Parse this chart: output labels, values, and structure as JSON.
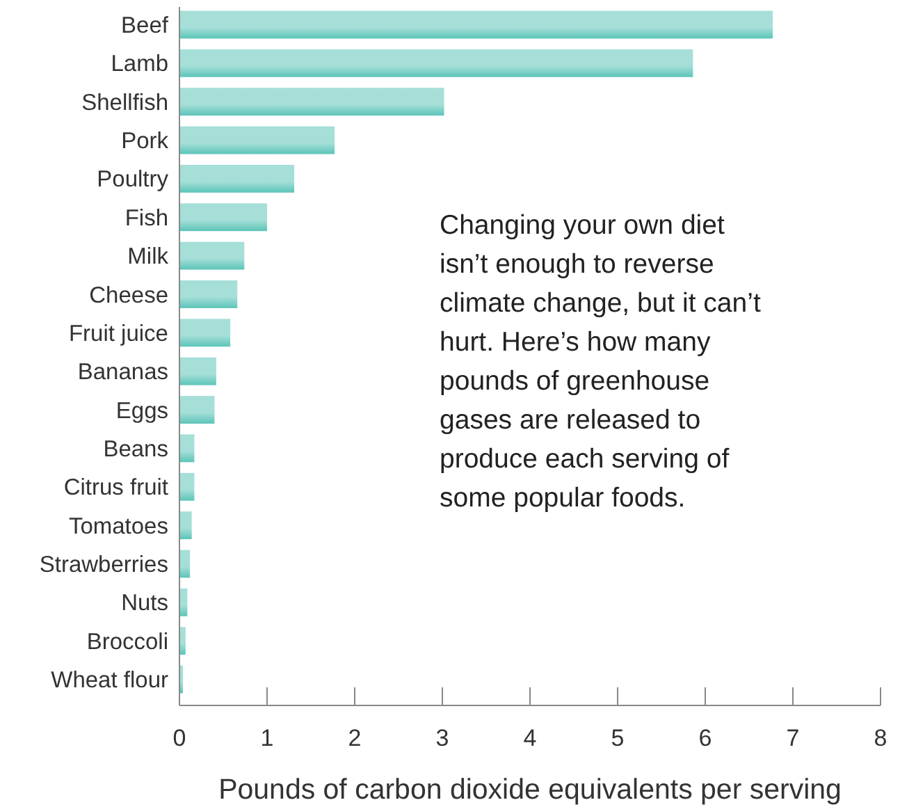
{
  "chart_data": {
    "type": "bar",
    "orientation": "horizontal",
    "categories": [
      "Beef",
      "Lamb",
      "Shellfish",
      "Pork",
      "Poultry",
      "Fish",
      "Milk",
      "Cheese",
      "Fruit juice",
      "Bananas",
      "Eggs",
      "Beans",
      "Citrus fruit",
      "Tomatoes",
      "Strawberries",
      "Nuts",
      "Broccoli",
      "Wheat flour"
    ],
    "values": [
      6.77,
      5.86,
      3.02,
      1.77,
      1.31,
      1.0,
      0.74,
      0.66,
      0.58,
      0.42,
      0.4,
      0.17,
      0.17,
      0.14,
      0.12,
      0.09,
      0.07,
      0.04
    ],
    "color": "#5cc4b8",
    "xlim": [
      0,
      8
    ],
    "xticks": [
      0,
      1,
      2,
      3,
      4,
      5,
      6,
      7,
      8
    ],
    "xlabel": "Pounds of carbon dioxide equivalents per serving",
    "annotations": [
      "Changing your own diet\nisn’t enough to reverse\nclimate change, but it can’t\nhurt. Here’s how many\npounds of greenhouse\ngases are released to\nproduce each serving of\nsome popular foods."
    ],
    "grid": false
  }
}
